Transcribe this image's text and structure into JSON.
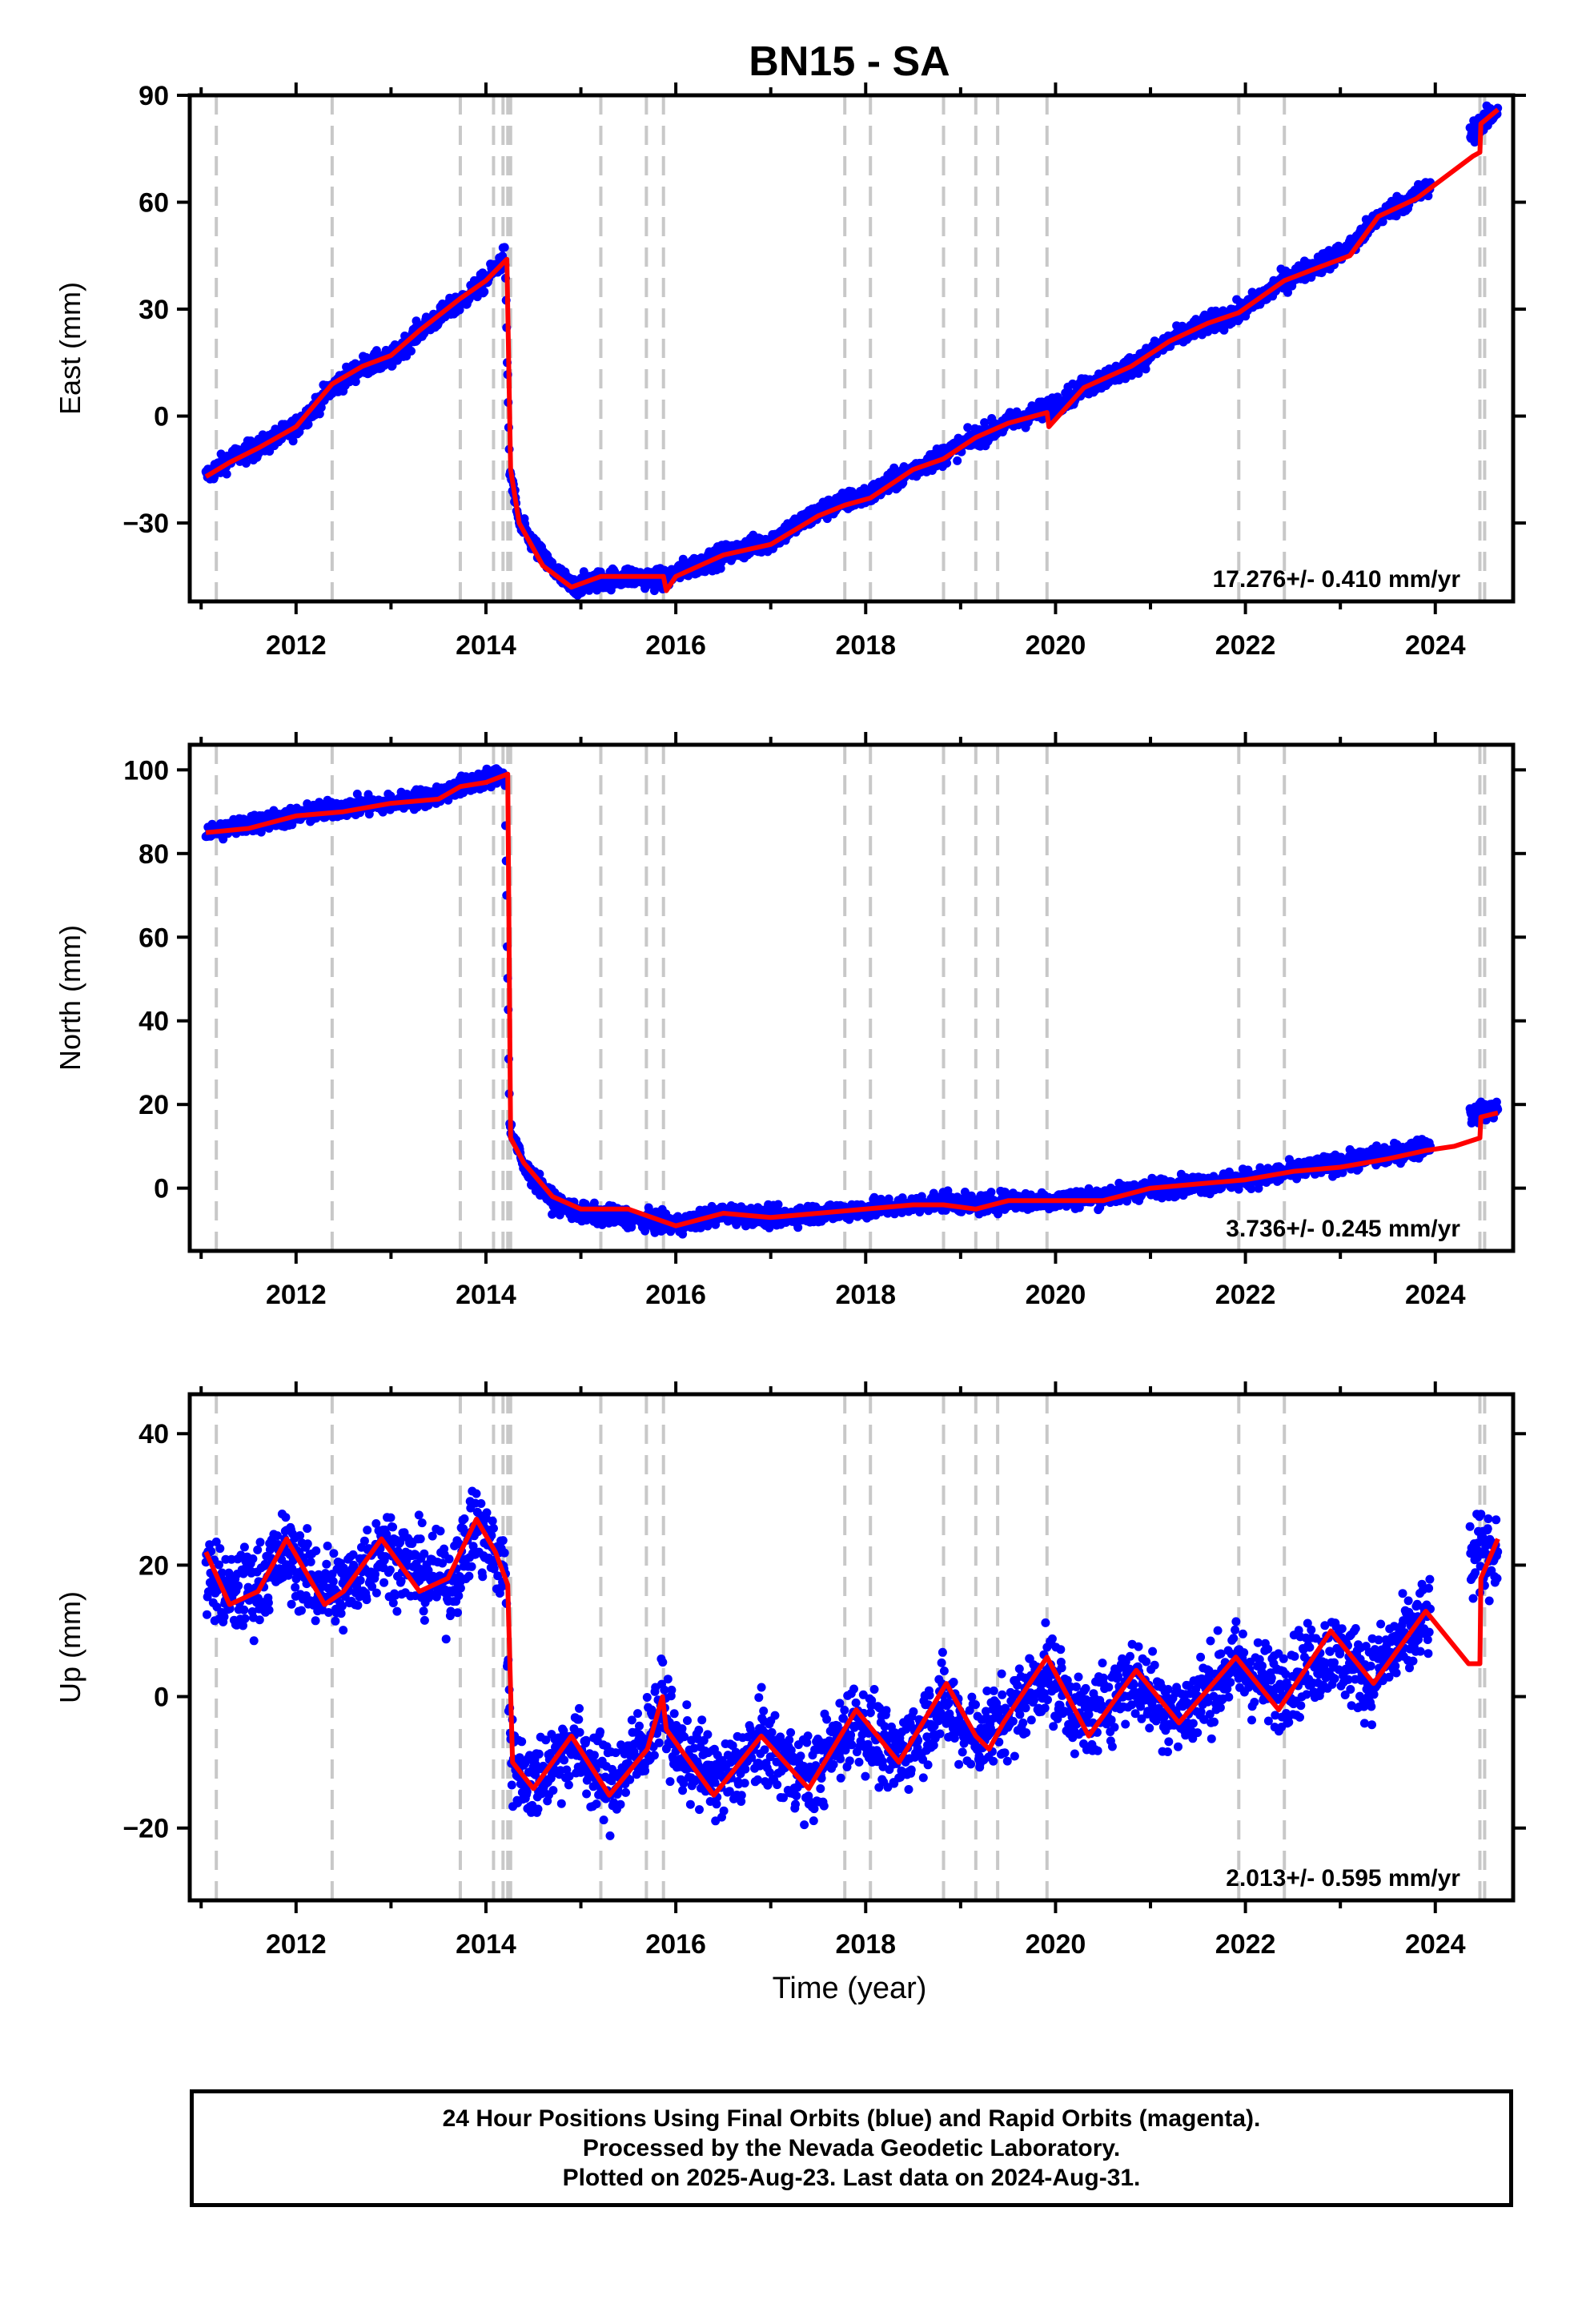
{
  "figure": {
    "title": "BN15 - SA",
    "xlabel": "Time (year)",
    "caption_lines": [
      "24 Hour Positions Using Final Orbits (blue) and Rapid Orbits (magenta).",
      "Processed by the Nevada Geodetic Laboratory.",
      "Plotted on 2025-Aug-23. Last data on 2024-Aug-31."
    ],
    "colors": {
      "data": "#0000ff",
      "model": "#ff0000",
      "events": "#c8c8c8",
      "axis": "#000000"
    },
    "event_lines": [
      2011.16,
      2012.38,
      2013.73,
      2014.08,
      2014.18,
      2014.23,
      2014.26,
      2015.21,
      2015.69,
      2015.87,
      2017.78,
      2018.05,
      2018.82,
      2019.16,
      2019.39,
      2019.91,
      2021.93,
      2022.41,
      2024.47,
      2024.52
    ]
  },
  "chart_data": [
    {
      "type": "scatter",
      "panel": "east",
      "ylabel": "East (mm)",
      "xlim": [
        2010.88,
        2024.82
      ],
      "ylim": [
        -52,
        90
      ],
      "xticks": [
        "2012",
        "2014",
        "2016",
        "2018",
        "2020",
        "2022",
        "2024"
      ],
      "yticks": [
        "90",
        "60",
        "30",
        "0",
        "−30"
      ],
      "ytick_values": [
        90,
        60,
        30,
        0,
        -30
      ],
      "rate": "17.276+/- 0.410 mm/yr",
      "noise": 2.0,
      "series": [
        {
          "values": [
            [
              2011.05,
              -17
            ],
            [
              2011.3,
              -12
            ],
            [
              2011.6,
              -9
            ],
            [
              2012.0,
              -3
            ],
            [
              2012.38,
              8
            ],
            [
              2012.7,
              14
            ],
            [
              2013.0,
              16
            ],
            [
              2013.3,
              24
            ],
            [
              2013.73,
              32
            ],
            [
              2014.0,
              38
            ],
            [
              2014.2,
              45
            ],
            [
              2014.25,
              -15
            ],
            [
              2014.35,
              -30
            ],
            [
              2014.6,
              -40
            ],
            [
              2014.9,
              -48
            ],
            [
              2015.2,
              -46
            ],
            [
              2015.5,
              -45
            ],
            [
              2015.87,
              -46
            ],
            [
              2016.0,
              -44
            ],
            [
              2016.5,
              -39
            ],
            [
              2017.0,
              -35
            ],
            [
              2017.5,
              -27
            ],
            [
              2017.78,
              -24
            ],
            [
              2018.05,
              -22
            ],
            [
              2018.5,
              -15
            ],
            [
              2018.82,
              -11
            ],
            [
              2019.16,
              -6
            ],
            [
              2019.5,
              -2
            ],
            [
              2019.91,
              2
            ],
            [
              2020.3,
              8
            ],
            [
              2020.8,
              14
            ],
            [
              2021.2,
              21
            ],
            [
              2021.6,
              26
            ],
            [
              2021.93,
              29
            ],
            [
              2022.41,
              38
            ],
            [
              2022.8,
              43
            ],
            [
              2023.1,
              47
            ],
            [
              2023.4,
              56
            ],
            [
              2023.8,
              62
            ],
            [
              2024.05,
              66
            ],
            [
              2024.4,
              80
            ],
            [
              2024.66,
              86
            ]
          ]
        },
        {
          "values": [
            [
              2011.05,
              -17
            ],
            [
              2011.3,
              -13
            ],
            [
              2011.6,
              -9
            ],
            [
              2012.0,
              -3
            ],
            [
              2012.38,
              9
            ],
            [
              2012.7,
              14
            ],
            [
              2013.0,
              17
            ],
            [
              2013.3,
              24
            ],
            [
              2013.73,
              33
            ],
            [
              2014.0,
              38
            ],
            [
              2014.22,
              44
            ],
            [
              2014.26,
              -15
            ],
            [
              2014.35,
              -30
            ],
            [
              2014.6,
              -42
            ],
            [
              2014.9,
              -48
            ],
            [
              2015.21,
              -45
            ],
            [
              2015.5,
              -45
            ],
            [
              2015.87,
              -45
            ],
            [
              2015.9,
              -49
            ],
            [
              2016.0,
              -45
            ],
            [
              2016.5,
              -39
            ],
            [
              2017.0,
              -36
            ],
            [
              2017.5,
              -28
            ],
            [
              2017.78,
              -25
            ],
            [
              2018.05,
              -23
            ],
            [
              2018.5,
              -15
            ],
            [
              2018.82,
              -12
            ],
            [
              2019.16,
              -6
            ],
            [
              2019.5,
              -2
            ],
            [
              2019.91,
              1
            ],
            [
              2019.93,
              -3
            ],
            [
              2020.3,
              8
            ],
            [
              2020.8,
              14
            ],
            [
              2021.2,
              21
            ],
            [
              2021.6,
              26
            ],
            [
              2021.93,
              29
            ],
            [
              2022.41,
              38
            ],
            [
              2022.8,
              42
            ],
            [
              2023.1,
              45
            ],
            [
              2023.4,
              56
            ],
            [
              2023.8,
              61
            ],
            [
              2024.05,
              66
            ],
            [
              2024.4,
              73
            ],
            [
              2024.47,
              74
            ],
            [
              2024.48,
              82
            ],
            [
              2024.66,
              86
            ]
          ]
        }
      ]
    },
    {
      "type": "scatter",
      "panel": "north",
      "ylabel": "North (mm)",
      "xlim": [
        2010.88,
        2024.82
      ],
      "ylim": [
        -15,
        106
      ],
      "xticks": [
        "2012",
        "2014",
        "2016",
        "2018",
        "2020",
        "2022",
        "2024"
      ],
      "yticks": [
        "100",
        "80",
        "60",
        "40",
        "20",
        "0"
      ],
      "ytick_values": [
        100,
        80,
        60,
        40,
        20,
        0
      ],
      "rate": "3.736+/- 0.245 mm/yr",
      "noise": 1.6,
      "series": [
        {
          "values": [
            [
              2011.05,
              85
            ],
            [
              2011.5,
              87
            ],
            [
              2012.0,
              89
            ],
            [
              2012.5,
              91
            ],
            [
              2013.0,
              92
            ],
            [
              2013.5,
              94
            ],
            [
              2013.73,
              96
            ],
            [
              2014.0,
              98
            ],
            [
              2014.2,
              99
            ],
            [
              2014.25,
              15
            ],
            [
              2014.4,
              5
            ],
            [
              2014.7,
              -3
            ],
            [
              2015.0,
              -6
            ],
            [
              2015.5,
              -7
            ],
            [
              2016.0,
              -9
            ],
            [
              2016.5,
              -6
            ],
            [
              2017.0,
              -7
            ],
            [
              2017.5,
              -6
            ],
            [
              2018.0,
              -5
            ],
            [
              2018.5,
              -4
            ],
            [
              2018.82,
              -3
            ],
            [
              2019.16,
              -4
            ],
            [
              2019.5,
              -3
            ],
            [
              2019.91,
              -3
            ],
            [
              2020.5,
              -2
            ],
            [
              2021.0,
              0
            ],
            [
              2021.5,
              1
            ],
            [
              2022.0,
              2
            ],
            [
              2022.5,
              4
            ],
            [
              2023.0,
              6
            ],
            [
              2023.5,
              8
            ],
            [
              2023.9,
              10
            ],
            [
              2024.3,
              17
            ],
            [
              2024.66,
              19
            ]
          ]
        },
        {
          "values": [
            [
              2011.05,
              85
            ],
            [
              2011.5,
              86
            ],
            [
              2012.0,
              89
            ],
            [
              2012.5,
              90
            ],
            [
              2013.0,
              92
            ],
            [
              2013.5,
              93
            ],
            [
              2013.73,
              96
            ],
            [
              2014.0,
              97
            ],
            [
              2014.23,
              99
            ],
            [
              2014.26,
              12
            ],
            [
              2014.4,
              6
            ],
            [
              2014.7,
              -2
            ],
            [
              2015.0,
              -5
            ],
            [
              2015.5,
              -5
            ],
            [
              2016.0,
              -9
            ],
            [
              2016.5,
              -6
            ],
            [
              2017.0,
              -7
            ],
            [
              2017.5,
              -6
            ],
            [
              2018.0,
              -5
            ],
            [
              2018.5,
              -4
            ],
            [
              2018.82,
              -4
            ],
            [
              2019.16,
              -5
            ],
            [
              2019.5,
              -3
            ],
            [
              2019.91,
              -3
            ],
            [
              2020.5,
              -3
            ],
            [
              2021.0,
              0
            ],
            [
              2021.5,
              1
            ],
            [
              2022.0,
              2
            ],
            [
              2022.5,
              4
            ],
            [
              2023.0,
              5
            ],
            [
              2023.5,
              7
            ],
            [
              2023.9,
              9
            ],
            [
              2024.2,
              10
            ],
            [
              2024.47,
              12
            ],
            [
              2024.48,
              17
            ],
            [
              2024.66,
              18
            ]
          ]
        }
      ]
    },
    {
      "type": "scatter",
      "panel": "up",
      "ylabel": "Up (mm)",
      "xlim": [
        2010.88,
        2024.82
      ],
      "ylim": [
        -31,
        46
      ],
      "xticks": [
        "2012",
        "2014",
        "2016",
        "2018",
        "2020",
        "2022",
        "2024"
      ],
      "yticks": [
        "40",
        "20",
        "0",
        "−20"
      ],
      "ytick_values": [
        40,
        20,
        0,
        -20
      ],
      "rate": "2.013+/- 0.595 mm/yr",
      "noise": 4.5,
      "series": [
        {
          "values": [
            [
              2011.05,
              19
            ],
            [
              2011.3,
              15
            ],
            [
              2011.6,
              17
            ],
            [
              2011.9,
              22
            ],
            [
              2012.2,
              17
            ],
            [
              2012.5,
              16
            ],
            [
              2012.9,
              23
            ],
            [
              2013.3,
              19
            ],
            [
              2013.6,
              17
            ],
            [
              2013.9,
              26
            ],
            [
              2014.2,
              19
            ],
            [
              2014.27,
              -10
            ],
            [
              2014.5,
              -13
            ],
            [
              2014.9,
              -7
            ],
            [
              2015.3,
              -14
            ],
            [
              2015.7,
              -6
            ],
            [
              2015.87,
              -1
            ],
            [
              2016.0,
              -8
            ],
            [
              2016.5,
              -13
            ],
            [
              2016.9,
              -7
            ],
            [
              2017.4,
              -13
            ],
            [
              2017.9,
              -3
            ],
            [
              2018.3,
              -10
            ],
            [
              2018.8,
              -1
            ],
            [
              2019.16,
              -6
            ],
            [
              2019.5,
              -3
            ],
            [
              2019.91,
              4
            ],
            [
              2020.3,
              -4
            ],
            [
              2020.8,
              3
            ],
            [
              2021.3,
              -3
            ],
            [
              2021.9,
              5
            ],
            [
              2022.3,
              1
            ],
            [
              2022.9,
              7
            ],
            [
              2023.3,
              3
            ],
            [
              2023.8,
              10
            ],
            [
              2024.5,
              22
            ],
            [
              2024.66,
              23
            ]
          ]
        },
        {
          "values": [
            [
              2011.05,
              22
            ],
            [
              2011.3,
              14
            ],
            [
              2011.6,
              16
            ],
            [
              2011.9,
              24
            ],
            [
              2012.3,
              14
            ],
            [
              2012.5,
              16
            ],
            [
              2012.9,
              24
            ],
            [
              2013.3,
              16
            ],
            [
              2013.6,
              18
            ],
            [
              2013.9,
              27
            ],
            [
              2014.1,
              22
            ],
            [
              2014.23,
              17
            ],
            [
              2014.28,
              -10
            ],
            [
              2014.5,
              -14
            ],
            [
              2014.9,
              -6
            ],
            [
              2015.3,
              -15
            ],
            [
              2015.7,
              -8
            ],
            [
              2015.86,
              0
            ],
            [
              2015.9,
              -5
            ],
            [
              2016.4,
              -15
            ],
            [
              2016.9,
              -6
            ],
            [
              2017.4,
              -14
            ],
            [
              2017.9,
              -2
            ],
            [
              2018.35,
              -10
            ],
            [
              2018.85,
              2
            ],
            [
              2019.16,
              -6
            ],
            [
              2019.3,
              -8
            ],
            [
              2019.45,
              -4
            ],
            [
              2019.91,
              6
            ],
            [
              2020.35,
              -6
            ],
            [
              2020.85,
              4
            ],
            [
              2021.3,
              -4
            ],
            [
              2021.9,
              6
            ],
            [
              2022.35,
              -2
            ],
            [
              2022.9,
              10
            ],
            [
              2023.35,
              2
            ],
            [
              2023.9,
              13
            ],
            [
              2024.35,
              5
            ],
            [
              2024.47,
              5
            ],
            [
              2024.48,
              18
            ],
            [
              2024.66,
              24
            ]
          ]
        }
      ]
    }
  ]
}
